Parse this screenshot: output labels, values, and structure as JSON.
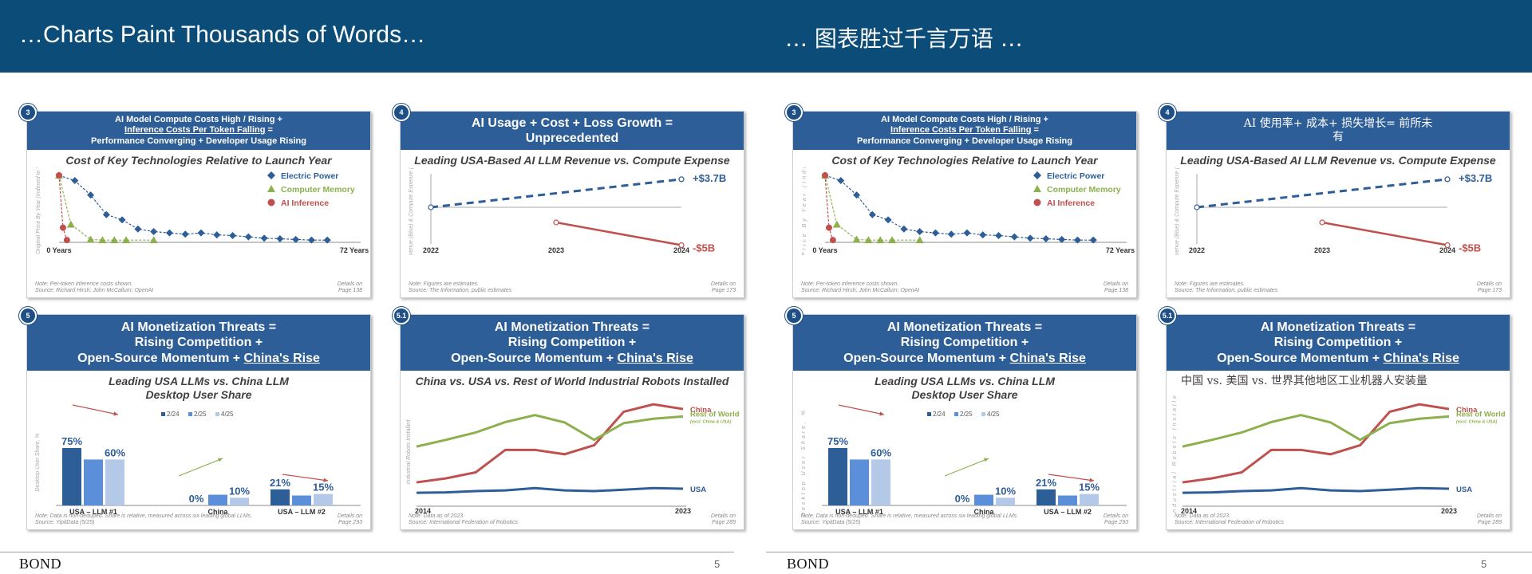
{
  "header": {
    "title_en": "…Charts Paint Thousands of Words…",
    "title_cn": "… 图表胜过千言万语 …"
  },
  "footer": {
    "brand": "BOND",
    "page": "5"
  },
  "colors": {
    "header_band": "#0b4d78",
    "card_header": "#2e5e98",
    "usa_blue": "#2e5e98",
    "china_red": "#c0504d",
    "row_green": "#8db04d"
  },
  "cards": {
    "c3": {
      "badge": "3",
      "head": [
        {
          "text": "AI Model Compute Costs High / Rising +"
        },
        {
          "text": "Inference Costs Per Token Falling",
          "tail": " ="
        },
        {
          "text": "Performance Converging + Developer Usage Rising"
        }
      ],
      "head_cn": [
        "AI Model Compute Costs High / Rising +",
        "Inference Costs Per Token Falling =",
        "Performance Converging + Developer Usage Rising"
      ],
      "subtitle": "Cost of Key Technologies Relative to Launch Year",
      "note": "Note: Per-token inference costs shown.",
      "source": "Source: Richard Hirsh; John McCallum; OpenAI",
      "details": "Details on",
      "page": "Page 138"
    },
    "c4": {
      "badge": "4",
      "head": [
        "AI Usage + Cost + Loss Growth =",
        "Unprecedented"
      ],
      "head_cn": [
        "AI 使用率+ 成本+ 损失增长= 前所未",
        "有"
      ],
      "subtitle": "Leading USA-Based AI LLM Revenue vs. Compute Expense",
      "note": "Note: Figures are estimates.",
      "source": "Source: The Information, public estimates",
      "details": "Details on",
      "page": "Page 173"
    },
    "c5": {
      "badge": "5",
      "head": [
        "AI Monetization Threats =",
        "Rising Competition +",
        "Open-Source Momentum + "
      ],
      "head_u": "China's Rise",
      "subtitle": [
        "Leading USA LLMs vs. China LLM",
        "Desktop User Share"
      ],
      "note": "Note: Data is non-deduped. Share is relative, measured across six leading global LLMs.",
      "source": "Source: YipitData (5/25)",
      "details": "Details on",
      "page": "Page 293"
    },
    "c51": {
      "badge": "5.1",
      "head": [
        "AI Monetization Threats =",
        "Rising Competition +",
        "Open-Source Momentum + "
      ],
      "head_u": "China's Rise",
      "subtitle": "China vs. USA vs. Rest of World Industrial Robots Installed",
      "subtitle_cn": "中国 vs. 美国 vs. 世界其他地区工业机器人安装量",
      "note": "Note: Data as of 2023.",
      "source": "Source: International Federation of Robotics",
      "details": "Details on",
      "page": "Page 289"
    }
  },
  "chart_data": [
    {
      "type": "scatter",
      "title": "Cost of Key Technologies Relative to Launch Year",
      "ylabel": "% of Original Price By Year (Indexed to Year 0)",
      "x_start_label": "0 Years",
      "x_end_label": "72 Years",
      "x_range": [
        0,
        72
      ],
      "y_range": [
        0,
        100
      ],
      "series": [
        {
          "name": "Electric Power",
          "color": "#2e5e98",
          "marker": "diamond",
          "x": [
            0,
            4,
            8,
            12,
            16,
            20,
            24,
            28,
            32,
            36,
            40,
            44,
            48,
            52,
            56,
            60,
            64,
            68
          ],
          "y": [
            100,
            92,
            70,
            40,
            32,
            18,
            14,
            12,
            10,
            12,
            9,
            8,
            6,
            4,
            3,
            2,
            1,
            1
          ]
        },
        {
          "name": "Computer Memory",
          "color": "#8db04d",
          "marker": "triangle",
          "x": [
            0,
            3,
            8,
            11,
            14,
            17,
            24
          ],
          "y": [
            100,
            25,
            2,
            1,
            1,
            1,
            1
          ]
        },
        {
          "name": "AI Inference",
          "color": "#c0504d",
          "marker": "circle",
          "x": [
            0,
            1,
            2
          ],
          "y": [
            100,
            20,
            1
          ]
        }
      ]
    },
    {
      "type": "line",
      "title": "Leading USA-Based AI LLM Revenue vs. Compute Expense",
      "ylabel": "Revenue (Blue) & Compute Expense (Red)",
      "x": [
        "2022",
        "2023",
        "2024"
      ],
      "series": [
        {
          "name": "Revenue",
          "color": "#2e5e98",
          "dashed": true,
          "x": [
            2022,
            2024
          ],
          "y": [
            0,
            3.7
          ],
          "end_label": "+$3.7B"
        },
        {
          "name": "Compute Expense",
          "color": "#c0504d",
          "dashed": false,
          "x": [
            2023,
            2024
          ],
          "y": [
            -2,
            -5
          ],
          "end_label": "-$5B"
        }
      ]
    },
    {
      "type": "bar",
      "title": "Leading USA LLMs vs. China LLM Desktop User Share",
      "ylabel": "Desktop User Share, %",
      "categories": [
        "USA – LLM #1",
        "China",
        "USA – LLM #2"
      ],
      "series": [
        {
          "name": "2/24",
          "color": "#2e5e98",
          "values": [
            75,
            0,
            21
          ]
        },
        {
          "name": "2/25",
          "color": "#5b8fd9",
          "values": [
            60,
            14,
            13
          ]
        },
        {
          "name": "4/25",
          "color": "#b4c9e7",
          "values": [
            60,
            10,
            15
          ]
        }
      ],
      "data_labels": [
        {
          "category": 0,
          "series": 0,
          "text": "75%"
        },
        {
          "category": 0,
          "series": 2,
          "text": "60%"
        },
        {
          "category": 1,
          "series": 0,
          "text": "0%"
        },
        {
          "category": 1,
          "series": 2,
          "text": "10%"
        },
        {
          "category": 2,
          "series": 0,
          "text": "21%"
        },
        {
          "category": 2,
          "series": 2,
          "text": "15%"
        }
      ],
      "ylim": [
        0,
        100
      ]
    },
    {
      "type": "line",
      "title": "China vs. USA vs. Rest of World Industrial Robots Installed",
      "ylabel": "Industrial Robots Installed",
      "x_start_label": "2014",
      "x_end_label": "2023",
      "x": [
        2014,
        2015,
        2016,
        2017,
        2018,
        2019,
        2020,
        2021,
        2022,
        2023
      ],
      "series": [
        {
          "name": "China",
          "color": "#c0504d",
          "values": [
            57,
            69,
            87,
            154,
            154,
            141,
            168,
            268,
            290,
            276
          ]
        },
        {
          "name": "Rest of World",
          "sub": "(excl. China & USA)",
          "color": "#8db04d",
          "values": [
            164,
            184,
            206,
            237,
            258,
            236,
            184,
            234,
            247,
            254
          ]
        },
        {
          "name": "USA",
          "color": "#2e5e98",
          "values": [
            26,
            27,
            31,
            33,
            40,
            33,
            31,
            35,
            40,
            38
          ]
        }
      ],
      "ylim": [
        0,
        300
      ]
    }
  ]
}
